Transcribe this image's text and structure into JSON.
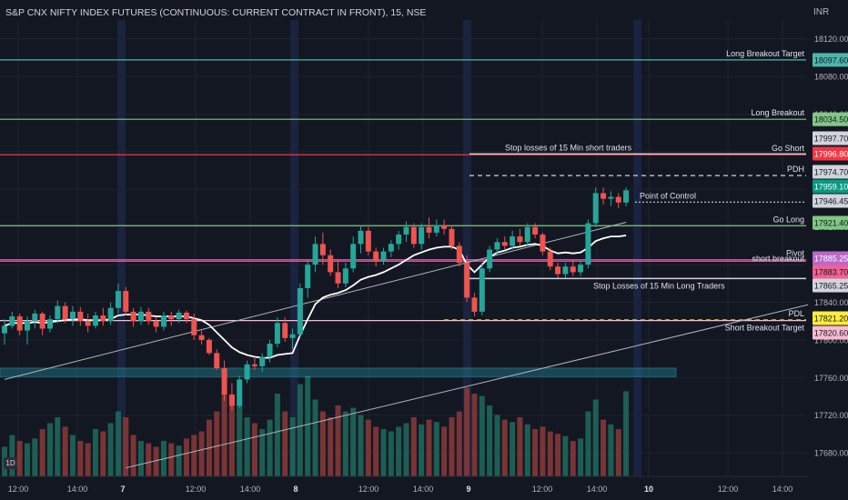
{
  "header": {
    "title": "S&P CNX NIFTY INDEX FUTURES (CONTINUOUS: CURRENT CONTRACT IN FRONT), 15, NSE",
    "currency": "INR",
    "interval_badge": "1D"
  },
  "colors": {
    "background": "#131722",
    "bull": "#26a69a",
    "bear": "#ef5350",
    "ma": "#ffffff",
    "grid": "#1f2330"
  },
  "chart_data": {
    "type": "candlestick",
    "y_axis": {
      "range": [
        17655,
        18140
      ],
      "ticks": [
        "18120.00",
        "18080.00",
        "18040.00",
        "18000.00",
        "17960.00",
        "17920.00",
        "17880.00",
        "17840.00",
        "17800.00",
        "17760.00",
        "17720.00",
        "17680.00"
      ]
    },
    "x_axis": {
      "labels": [
        "12:00",
        "14:00",
        "7",
        "12:00",
        "14:00",
        "8",
        "12:00",
        "14:00",
        "9",
        "12:00",
        "14:00",
        "10",
        "12:00",
        "14:00"
      ],
      "session_separators": [
        "7",
        "8",
        "9",
        "10"
      ]
    },
    "levels": [
      {
        "name": "Long Breakout Target",
        "price": "18097.60",
        "value": 18097.6,
        "color": "#4db6ac",
        "badge_text": "#131722",
        "label": "Long Breakout Target",
        "style": "solid"
      },
      {
        "name": "Long Breakout",
        "price": "18034.50",
        "value": 18034.5,
        "color": "#81c784",
        "badge_text": "#131722",
        "label": "Long Breakout",
        "style": "solid"
      },
      {
        "name": "Go Short",
        "price": "17996.80",
        "value": 17996.8,
        "color": "#f23645",
        "badge_text": "#ffffff",
        "label": "Go Short",
        "style": "solid"
      },
      {
        "name": "Stop losses of 15 Min short traders",
        "price": "17997.70",
        "value": 17997.7,
        "color": "#d1d4dc",
        "badge_text": "#131722",
        "label": "Stop losses of 15 Min short traders",
        "style": "segment"
      },
      {
        "name": "PDH",
        "price": "17974.70",
        "value": 17974.7,
        "color": "#d1d4dc",
        "badge_text": "#131722",
        "label": "PDH",
        "style": "dashed"
      },
      {
        "name": "Last price",
        "price": "17959.10",
        "value": 17959.1,
        "color": "#089981",
        "badge_text": "#ffffff",
        "label": "",
        "style": "none"
      },
      {
        "name": "Point of Control",
        "price": "17946.45",
        "value": 17946.45,
        "color": "#d1d4dc",
        "badge_text": "#131722",
        "label": "Point of Control",
        "style": "dotted"
      },
      {
        "name": "Go Long",
        "price": "17921.40",
        "value": 17921.4,
        "color": "#81c784",
        "badge_text": "#131722",
        "label": "Go Long",
        "style": "solid"
      },
      {
        "name": "Pivot",
        "price": "17885.25",
        "value": 17885.25,
        "color": "#ba68c8",
        "badge_text": "#ffffff",
        "label": "Pivot",
        "style": "solid"
      },
      {
        "name": "short breakout",
        "price": "17883.70",
        "value": 17883.7,
        "color": "#f06292",
        "badge_text": "#131722",
        "label": "short breakout",
        "style": "solid"
      },
      {
        "name": "Stop Losses of 15 Min Long Traders",
        "price": "17865.25",
        "value": 17865.25,
        "color": "#d1d4dc",
        "badge_text": "#131722",
        "label": "Stop Losses of 15 Min Long Traders",
        "style": "segment"
      },
      {
        "name": "PDL",
        "price": "17821.20",
        "value": 17821.2,
        "color": "#ffeb3b",
        "badge_text": "#131722",
        "label": "PDL",
        "style": "dashed"
      },
      {
        "name": "Short Breakout Target",
        "price": "17820.60",
        "value": 17820.6,
        "color": "#f8bbd0",
        "badge_text": "#131722",
        "label": "Short  Breakout Target",
        "style": "solid"
      }
    ],
    "candles": [
      [
        17807,
        17822,
        17795,
        17815
      ],
      [
        17815,
        17830,
        17812,
        17825
      ],
      [
        17825,
        17828,
        17805,
        17810
      ],
      [
        17810,
        17825,
        17795,
        17820
      ],
      [
        17820,
        17832,
        17812,
        17828
      ],
      [
        17828,
        17830,
        17805,
        17812
      ],
      [
        17812,
        17826,
        17808,
        17822
      ],
      [
        17822,
        17842,
        17818,
        17836
      ],
      [
        17836,
        17840,
        17818,
        17822
      ],
      [
        17822,
        17836,
        17815,
        17830
      ],
      [
        17830,
        17835,
        17815,
        17820
      ],
      [
        17820,
        17828,
        17808,
        17815
      ],
      [
        17815,
        17830,
        17812,
        17826
      ],
      [
        17826,
        17834,
        17815,
        17820
      ],
      [
        17820,
        17840,
        17816,
        17834
      ],
      [
        17834,
        17860,
        17828,
        17852
      ],
      [
        17852,
        17856,
        17826,
        17830
      ],
      [
        17830,
        17834,
        17814,
        17820
      ],
      [
        17820,
        17835,
        17816,
        17830
      ],
      [
        17830,
        17834,
        17816,
        17820
      ],
      [
        17820,
        17824,
        17808,
        17814
      ],
      [
        17814,
        17830,
        17810,
        17826
      ],
      [
        17826,
        17830,
        17815,
        17822
      ],
      [
        17822,
        17832,
        17818,
        17829
      ],
      [
        17829,
        17831,
        17818,
        17822
      ],
      [
        17822,
        17828,
        17800,
        17805
      ],
      [
        17805,
        17810,
        17795,
        17800
      ],
      [
        17800,
        17802,
        17784,
        17786
      ],
      [
        17786,
        17790,
        17768,
        17770
      ],
      [
        17770,
        17778,
        17735,
        17742
      ],
      [
        17742,
        17754,
        17725,
        17730
      ],
      [
        17730,
        17762,
        17728,
        17758
      ],
      [
        17758,
        17778,
        17754,
        17774
      ],
      [
        17774,
        17782,
        17768,
        17772
      ],
      [
        17772,
        17786,
        17766,
        17782
      ],
      [
        17782,
        17800,
        17776,
        17796
      ],
      [
        17796,
        17824,
        17792,
        17818
      ],
      [
        17818,
        17824,
        17798,
        17802
      ],
      [
        17802,
        17812,
        17790,
        17806
      ],
      [
        17806,
        17860,
        17802,
        17855
      ],
      [
        17855,
        17885,
        17845,
        17880
      ],
      [
        17880,
        17910,
        17872,
        17902
      ],
      [
        17902,
        17914,
        17880,
        17890
      ],
      [
        17890,
        17896,
        17868,
        17872
      ],
      [
        17872,
        17886,
        17855,
        17860
      ],
      [
        17860,
        17882,
        17856,
        17876
      ],
      [
        17876,
        17910,
        17872,
        17902
      ],
      [
        17902,
        17922,
        17892,
        17916
      ],
      [
        17916,
        17920,
        17890,
        17894
      ],
      [
        17894,
        17898,
        17878,
        17884
      ],
      [
        17884,
        17898,
        17880,
        17894
      ],
      [
        17894,
        17906,
        17888,
        17902
      ],
      [
        17902,
        17916,
        17896,
        17912
      ],
      [
        17912,
        17926,
        17904,
        17920
      ],
      [
        17920,
        17924,
        17898,
        17902
      ],
      [
        17902,
        17924,
        17896,
        17920
      ],
      [
        17920,
        17930,
        17908,
        17914
      ],
      [
        17914,
        17928,
        17910,
        17922
      ],
      [
        17922,
        17928,
        17912,
        17918
      ],
      [
        17918,
        17922,
        17896,
        17900
      ],
      [
        17900,
        17904,
        17878,
        17882
      ],
      [
        17882,
        17890,
        17840,
        17845
      ],
      [
        17845,
        17850,
        17825,
        17830
      ],
      [
        17830,
        17882,
        17826,
        17876
      ],
      [
        17876,
        17900,
        17872,
        17896
      ],
      [
        17896,
        17908,
        17890,
        17904
      ],
      [
        17904,
        17910,
        17896,
        17900
      ],
      [
        17900,
        17916,
        17896,
        17910
      ],
      [
        17910,
        17918,
        17900,
        17904
      ],
      [
        17904,
        17924,
        17900,
        17920
      ],
      [
        17920,
        17924,
        17908,
        17912
      ],
      [
        17912,
        17914,
        17890,
        17894
      ],
      [
        17894,
        17898,
        17874,
        17878
      ],
      [
        17878,
        17882,
        17866,
        17870
      ],
      [
        17870,
        17882,
        17866,
        17878
      ],
      [
        17878,
        17886,
        17868,
        17872
      ],
      [
        17872,
        17884,
        17868,
        17880
      ],
      [
        17880,
        17928,
        17876,
        17924
      ],
      [
        17924,
        17962,
        17920,
        17956
      ],
      [
        17956,
        17962,
        17944,
        17950
      ],
      [
        17950,
        17958,
        17942,
        17952
      ],
      [
        17952,
        17956,
        17940,
        17946
      ],
      [
        17946,
        17962,
        17942,
        17959
      ]
    ],
    "volume": [
      0.25,
      0.35,
      0.3,
      0.28,
      0.32,
      0.4,
      0.45,
      0.5,
      0.42,
      0.35,
      0.3,
      0.28,
      0.4,
      0.38,
      0.45,
      0.55,
      0.5,
      0.35,
      0.3,
      0.28,
      0.25,
      0.3,
      0.28,
      0.26,
      0.32,
      0.35,
      0.38,
      0.48,
      0.55,
      0.72,
      0.68,
      0.6,
      0.5,
      0.45,
      0.4,
      0.48,
      0.7,
      0.55,
      0.5,
      0.78,
      0.85,
      0.65,
      0.55,
      0.5,
      0.6,
      0.55,
      0.58,
      0.52,
      0.48,
      0.42,
      0.4,
      0.38,
      0.42,
      0.45,
      0.5,
      0.44,
      0.48,
      0.46,
      0.42,
      0.5,
      0.55,
      0.75,
      0.7,
      0.68,
      0.6,
      0.52,
      0.48,
      0.46,
      0.5,
      0.44,
      0.4,
      0.42,
      0.38,
      0.36,
      0.34,
      0.3,
      0.32,
      0.55,
      0.65,
      0.48,
      0.44,
      0.4,
      0.72
    ],
    "vwap": [
      17815,
      17818,
      17818,
      17818,
      17819,
      17818,
      17819,
      17820,
      17821,
      17822,
      17822,
      17821,
      17821,
      17821,
      17822,
      17826,
      17827,
      17827,
      17827,
      17826,
      17825,
      17825,
      17825,
      17825,
      17825,
      17823,
      17821,
      17816,
      17808,
      17800,
      17792,
      17787,
      17784,
      17782,
      17781,
      17781,
      17784,
      17785,
      17786,
      17805,
      17822,
      17838,
      17845,
      17848,
      17850,
      17853,
      17858,
      17864,
      17867,
      17869,
      17872,
      17876,
      17880,
      17885,
      17890,
      17893,
      17896,
      17898,
      17899,
      17899,
      17896,
      17880,
      17872,
      17880,
      17888,
      17893,
      17895,
      17898,
      17899,
      17901,
      17902,
      17900,
      17895,
      17892,
      17893,
      17892,
      17893,
      17898,
      17905,
      17908,
      17910,
      17910,
      17911
    ],
    "shaded_zone": {
      "from": 17761,
      "to": 17770,
      "color": "#1f6e80"
    },
    "trendlines": [
      {
        "from": [
          0,
          17758
        ],
        "to": [
          82,
          17925
        ]
      },
      {
        "from": [
          16,
          17664
        ],
        "to": [
          124,
          17872
        ]
      }
    ]
  }
}
